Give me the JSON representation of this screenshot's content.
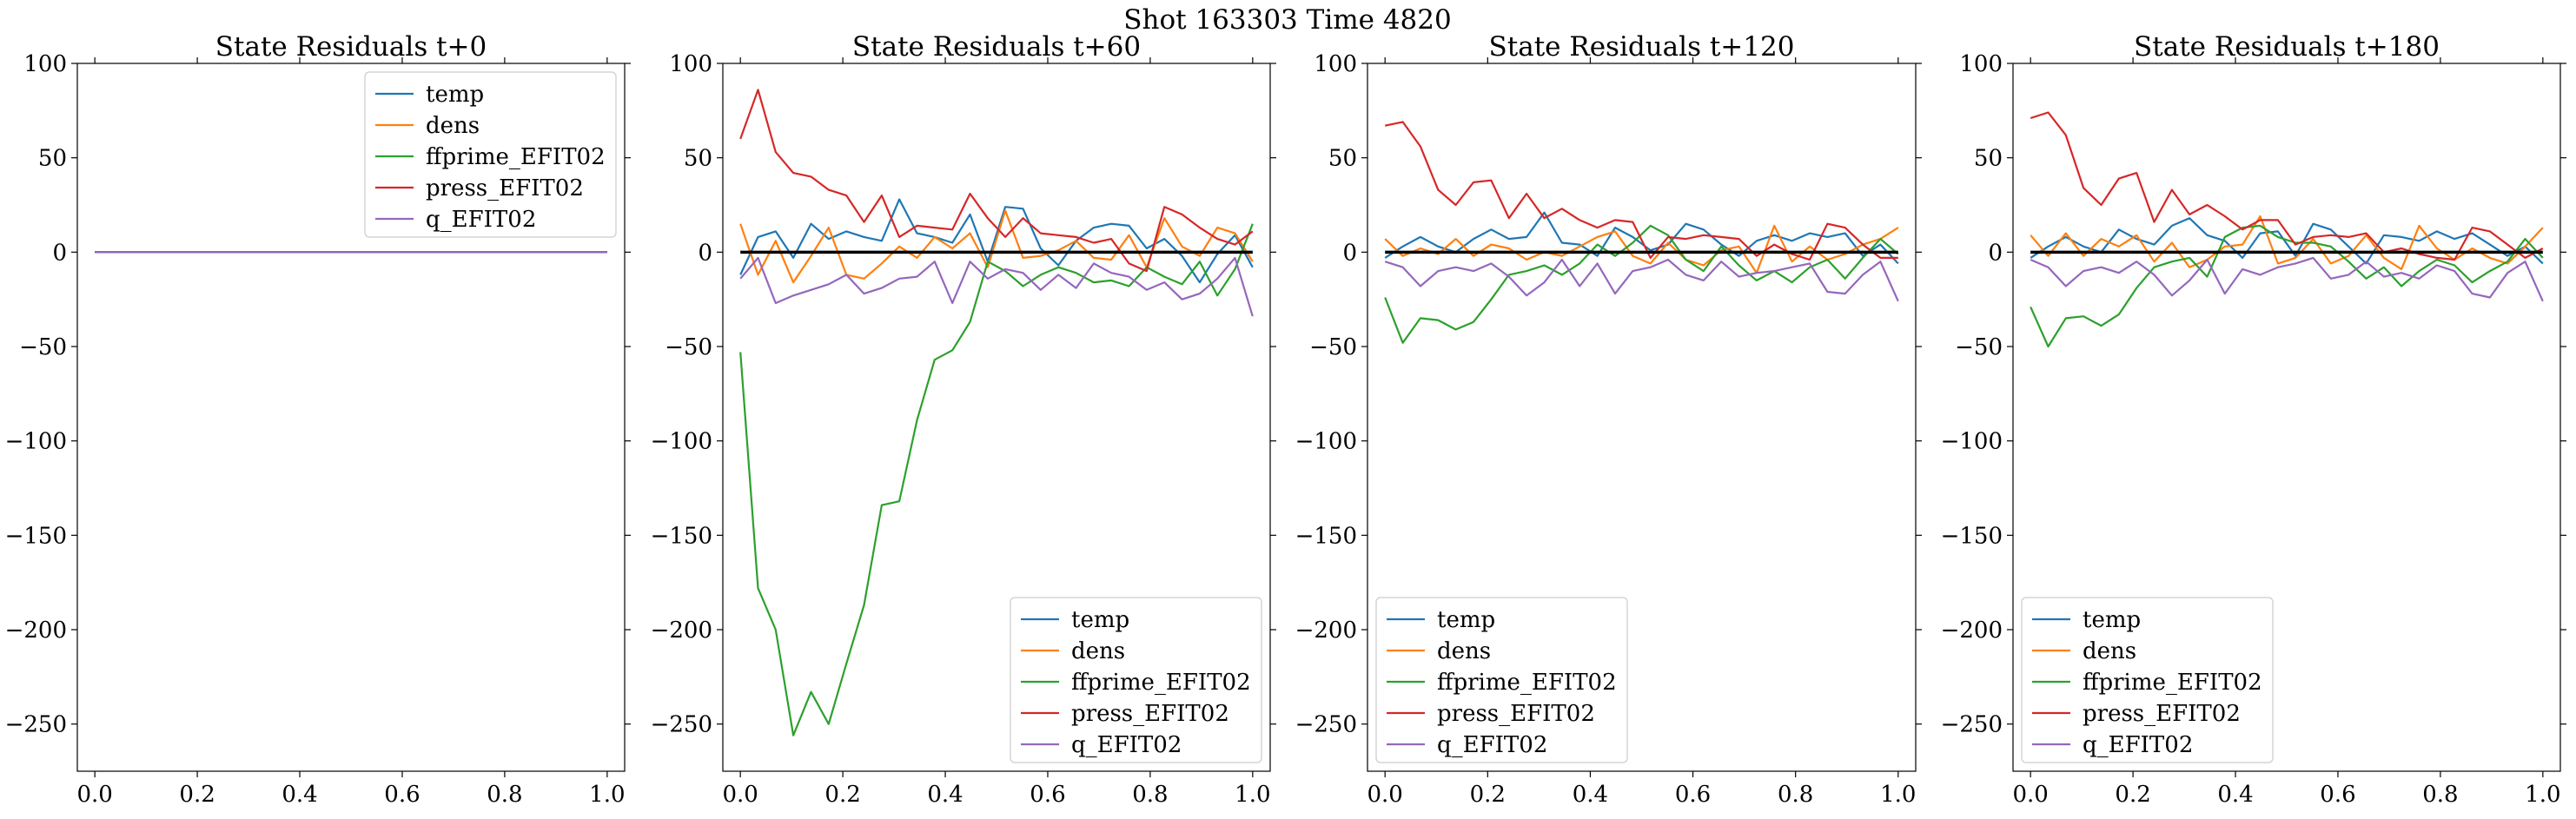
{
  "suptitle": "Shot 163303   Time 4820",
  "colors": {
    "temp": "#1f77b4",
    "dens": "#ff7f0e",
    "ffprime_EFIT02": "#2ca02c",
    "press_EFIT02": "#d62728",
    "q_EFIT02": "#9467bd"
  },
  "chart_data": [
    {
      "type": "line",
      "title": "State Residuals t+0",
      "xlim": [
        0,
        1
      ],
      "ylim": [
        -275,
        100
      ],
      "xticks": [
        "0.0",
        "0.2",
        "0.4",
        "0.6",
        "0.8",
        "1.0"
      ],
      "yticks": [
        "100",
        "50",
        "0",
        "−50",
        "−100",
        "−150",
        "−200",
        "−250"
      ],
      "legend_loc": "upper right",
      "zero_line": false,
      "x": [
        0.0,
        1.0
      ],
      "series": [
        {
          "name": "temp",
          "values": [
            0.0,
            0.0
          ]
        },
        {
          "name": "dens",
          "values": [
            0.0,
            0.0
          ]
        },
        {
          "name": "ffprime_EFIT02",
          "values": [
            0.0,
            0.0
          ]
        },
        {
          "name": "press_EFIT02",
          "values": [
            0.0,
            0.0
          ]
        },
        {
          "name": "q_EFIT02",
          "values": [
            0.0,
            0.0
          ]
        }
      ]
    },
    {
      "type": "line",
      "title": "State Residuals t+60",
      "xlim": [
        0,
        1
      ],
      "ylim": [
        -275,
        100
      ],
      "xticks": [
        "0.0",
        "0.2",
        "0.4",
        "0.6",
        "0.8",
        "1.0"
      ],
      "yticks": [
        "100",
        "50",
        "0",
        "−50",
        "−100",
        "−150",
        "−200",
        "−250"
      ],
      "legend_loc": "lower right",
      "zero_line": true,
      "x": [
        0.0,
        0.0345,
        0.069,
        0.1034,
        0.1379,
        0.1724,
        0.2069,
        0.2414,
        0.2759,
        0.3103,
        0.3448,
        0.3793,
        0.4138,
        0.4483,
        0.4828,
        0.5172,
        0.5517,
        0.5862,
        0.6207,
        0.6552,
        0.6897,
        0.7241,
        0.7586,
        0.7931,
        0.8276,
        0.8621,
        0.8966,
        0.931,
        0.9655,
        1.0
      ],
      "series": [
        {
          "name": "temp",
          "values": [
            -12,
            8,
            11,
            -3,
            15,
            7,
            11,
            8,
            6,
            28,
            10,
            8,
            5,
            20,
            -5,
            24,
            23,
            2,
            -7,
            6,
            13,
            15,
            14,
            2,
            7,
            -2,
            -16,
            -1,
            9,
            -8
          ]
        },
        {
          "name": "dens",
          "values": [
            15,
            -12,
            6,
            -16,
            -2,
            13,
            -12,
            -14,
            -6,
            3,
            -3,
            8,
            2,
            10,
            -8,
            22,
            -3,
            -2,
            1,
            6,
            -3,
            -4,
            9,
            -8,
            18,
            3,
            -2,
            13,
            10,
            -5
          ]
        },
        {
          "name": "ffprime_EFIT02",
          "values": [
            -53,
            -178,
            -200,
            -256,
            -233,
            -250,
            -218,
            -187,
            -134,
            -132,
            -89,
            -57,
            -52,
            -37,
            -5,
            -10,
            -18,
            -12,
            -8,
            -11,
            -16,
            -15,
            -18,
            -8,
            -13,
            -17,
            -5,
            -23,
            -9,
            15
          ]
        },
        {
          "name": "press_EFIT02",
          "values": [
            60,
            86,
            53,
            42,
            40,
            33,
            30,
            16,
            30,
            8,
            14,
            13,
            12,
            31,
            18,
            8,
            18,
            10,
            9,
            8,
            5,
            7,
            -6,
            -10,
            24,
            20,
            13,
            7,
            4,
            11
          ]
        },
        {
          "name": "q_EFIT02",
          "values": [
            -14,
            -3,
            -27,
            -23,
            -20,
            -17,
            -12,
            -22,
            -19,
            -14,
            -13,
            -5,
            -27,
            -5,
            -14,
            -9,
            -11,
            -20,
            -12,
            -19,
            -6,
            -11,
            -13,
            -20,
            -16,
            -25,
            -22,
            -14,
            -3,
            -34
          ]
        }
      ]
    },
    {
      "type": "line",
      "title": "State Residuals t+120",
      "xlim": [
        0,
        1
      ],
      "ylim": [
        -275,
        100
      ],
      "xticks": [
        "0.0",
        "0.2",
        "0.4",
        "0.6",
        "0.8",
        "1.0"
      ],
      "yticks": [
        "100",
        "50",
        "0",
        "−50",
        "−100",
        "−150",
        "−200",
        "−250"
      ],
      "legend_loc": "lower left",
      "zero_line": true,
      "x": [
        0.0,
        0.0345,
        0.069,
        0.1034,
        0.1379,
        0.1724,
        0.2069,
        0.2414,
        0.2759,
        0.3103,
        0.3448,
        0.3793,
        0.4138,
        0.4483,
        0.4828,
        0.5172,
        0.5517,
        0.5862,
        0.6207,
        0.6552,
        0.6897,
        0.7241,
        0.7586,
        0.7931,
        0.8276,
        0.8621,
        0.8966,
        0.931,
        0.9655,
        1.0
      ],
      "series": [
        {
          "name": "temp",
          "values": [
            -3,
            3,
            8,
            3,
            0,
            7,
            12,
            7,
            8,
            21,
            5,
            4,
            -2,
            13,
            8,
            1,
            4,
            15,
            12,
            4,
            -2,
            6,
            9,
            6,
            10,
            8,
            10,
            -2,
            4,
            -6
          ]
        },
        {
          "name": "dens",
          "values": [
            7,
            -2,
            2,
            -1,
            7,
            -2,
            4,
            2,
            -4,
            0,
            -2,
            3,
            8,
            11,
            -2,
            -6,
            5,
            -4,
            -7,
            1,
            3,
            -11,
            14,
            -5,
            3,
            -4,
            -1,
            4,
            7,
            13
          ]
        },
        {
          "name": "ffprime_EFIT02",
          "values": [
            -24,
            -48,
            -35,
            -36,
            -41,
            -37,
            -25,
            -12,
            -10,
            -7,
            -12,
            -6,
            4,
            -2,
            5,
            14,
            9,
            -4,
            -10,
            3,
            -7,
            -15,
            -10,
            -16,
            -8,
            -4,
            -14,
            -3,
            7,
            -1
          ]
        },
        {
          "name": "press_EFIT02",
          "values": [
            67,
            69,
            56,
            33,
            25,
            37,
            38,
            18,
            31,
            18,
            23,
            17,
            13,
            17,
            16,
            -3,
            8,
            7,
            9,
            8,
            7,
            -2,
            4,
            -1,
            -4,
            15,
            13,
            4,
            -3,
            -3
          ]
        },
        {
          "name": "q_EFIT02",
          "values": [
            -5,
            -8,
            -18,
            -10,
            -8,
            -10,
            -6,
            -13,
            -23,
            -16,
            -4,
            -18,
            -6,
            -22,
            -10,
            -8,
            -4,
            -12,
            -15,
            -5,
            -13,
            -11,
            -10,
            -8,
            -6,
            -21,
            -22,
            -12,
            -5,
            -26
          ]
        }
      ]
    },
    {
      "type": "line",
      "title": "State Residuals t+180",
      "xlim": [
        0,
        1
      ],
      "ylim": [
        -275,
        100
      ],
      "xticks": [
        "0.0",
        "0.2",
        "0.4",
        "0.6",
        "0.8",
        "1.0"
      ],
      "yticks": [
        "100",
        "50",
        "0",
        "−50",
        "−100",
        "−150",
        "−200",
        "−250"
      ],
      "legend_loc": "lower left",
      "zero_line": true,
      "x": [
        0.0,
        0.0345,
        0.069,
        0.1034,
        0.1379,
        0.1724,
        0.2069,
        0.2414,
        0.2759,
        0.3103,
        0.3448,
        0.3793,
        0.4138,
        0.4483,
        0.4828,
        0.5172,
        0.5517,
        0.5862,
        0.6207,
        0.6552,
        0.6897,
        0.7241,
        0.7586,
        0.7931,
        0.8276,
        0.8621,
        0.8966,
        0.931,
        0.9655,
        1.0
      ],
      "series": [
        {
          "name": "temp",
          "values": [
            -3,
            3,
            8,
            3,
            0,
            12,
            7,
            4,
            14,
            18,
            9,
            6,
            -3,
            10,
            11,
            -2,
            15,
            12,
            3,
            -6,
            9,
            8,
            6,
            11,
            7,
            10,
            4,
            -2,
            3,
            -6
          ]
        },
        {
          "name": "dens",
          "values": [
            9,
            -2,
            10,
            -2,
            7,
            3,
            9,
            -5,
            5,
            -8,
            -4,
            3,
            4,
            19,
            -6,
            -3,
            7,
            -6,
            -2,
            9,
            -3,
            -9,
            14,
            2,
            -4,
            2,
            -3,
            -6,
            3,
            13
          ]
        },
        {
          "name": "ffprime_EFIT02",
          "values": [
            -29,
            -50,
            -35,
            -34,
            -39,
            -33,
            -19,
            -8,
            -5,
            -3,
            -13,
            8,
            13,
            14,
            8,
            5,
            5,
            3,
            -5,
            -14,
            -8,
            -18,
            -10,
            -4,
            -7,
            -16,
            -10,
            -5,
            7,
            -3
          ]
        },
        {
          "name": "press_EFIT02",
          "values": [
            71,
            74,
            62,
            34,
            25,
            39,
            42,
            16,
            33,
            20,
            25,
            19,
            12,
            17,
            17,
            4,
            8,
            9,
            8,
            10,
            0,
            2,
            -1,
            -3,
            -4,
            13,
            11,
            4,
            -3,
            2
          ]
        },
        {
          "name": "q_EFIT02",
          "values": [
            -4,
            -8,
            -18,
            -10,
            -8,
            -11,
            -5,
            -12,
            -23,
            -15,
            -4,
            -22,
            -9,
            -12,
            -8,
            -6,
            -3,
            -14,
            -12,
            -5,
            -13,
            -11,
            -14,
            -7,
            -10,
            -22,
            -24,
            -11,
            -5,
            -26
          ]
        }
      ]
    }
  ]
}
